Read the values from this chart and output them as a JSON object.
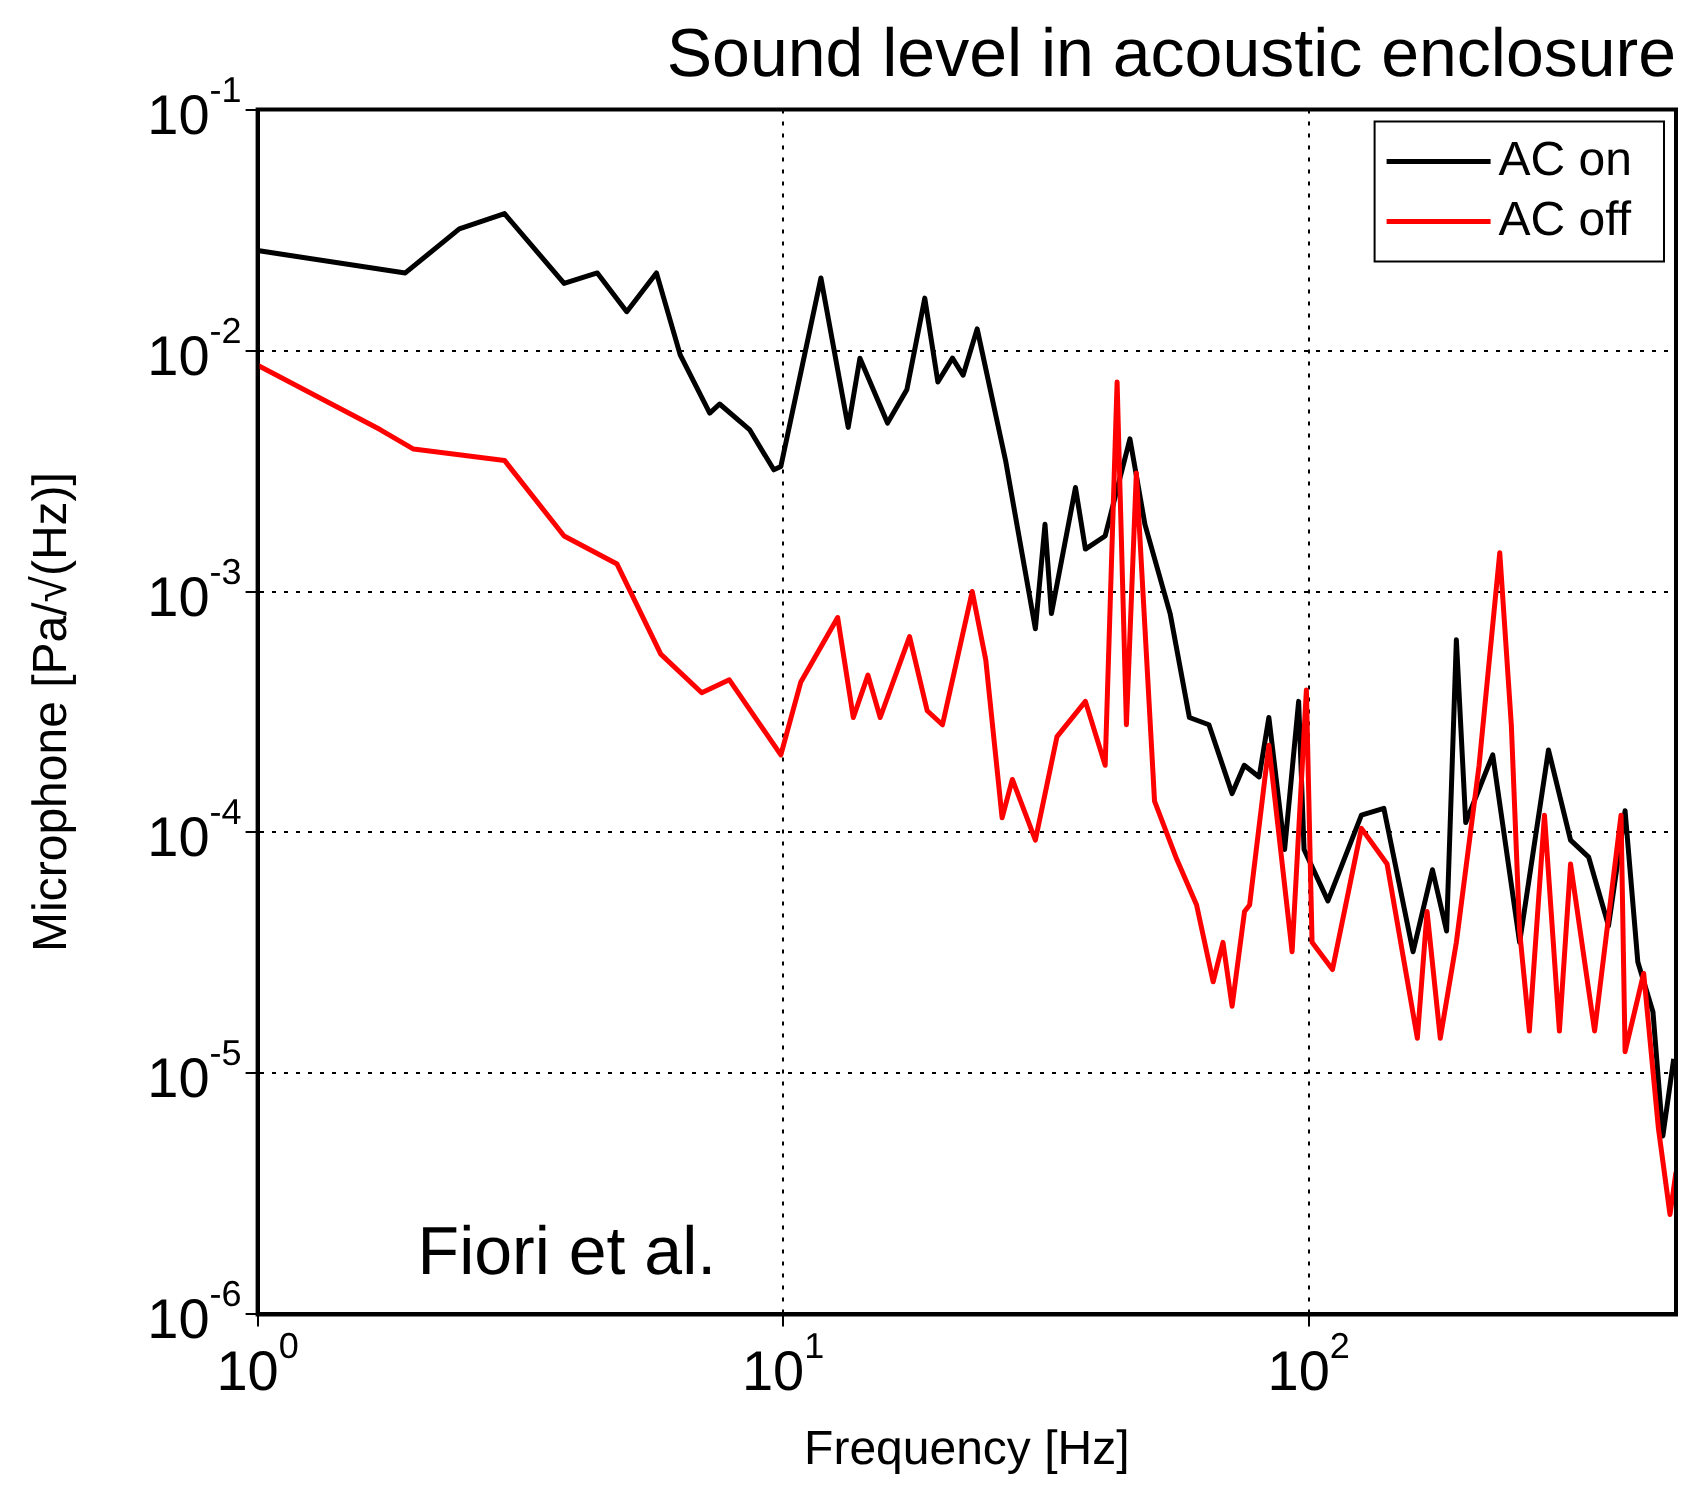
{
  "chart_data": {
    "type": "line",
    "title": "Sound level in acoustic enclosure",
    "xlabel": "Frequency [Hz]",
    "ylabel": "Microphone [Pa/√(Hz)]",
    "log": "xy",
    "grid": true,
    "legend": "top right",
    "xlim": [
      1,
      500
    ],
    "ylim": [
      1e-06,
      0.1
    ],
    "xticks": [
      {
        "value": 1,
        "label": "10$^{0}$"
      },
      {
        "value": 10,
        "label": "10$^{1}$"
      },
      {
        "value": 100,
        "label": "10$^{2}$"
      }
    ],
    "yticks": [
      {
        "value": 1e-06,
        "label": "10$^{-6}$"
      },
      {
        "value": 1e-05,
        "label": "10$^{-5}$"
      },
      {
        "value": 0.0001,
        "label": "10$^{-4}$"
      },
      {
        "value": 0.001,
        "label": "10$^{-3}$"
      },
      {
        "value": 0.01,
        "label": "10$^{-2}$"
      },
      {
        "value": 0.1,
        "label": "10$^{-1}$"
      }
    ],
    "annotations": [
      "Fiori et al."
    ],
    "series": [
      {
        "name": "AC on",
        "color": "#000000",
        "x": [
          1,
          1.91,
          2.42,
          2.95,
          3.83,
          4.43,
          5.04,
          5.74,
          6.37,
          7.25,
          7.57,
          8.63,
          9.6,
          9.9,
          11.8,
          13.3,
          14,
          15.8,
          17.2,
          18.6,
          19.7,
          21,
          22,
          23.4,
          26.5,
          30.2,
          31.5,
          32.4,
          36,
          37.6,
          41,
          45.7,
          48.8,
          54.5,
          59.3,
          64.6,
          71.5,
          75.4,
          80.5,
          84,
          90,
          95.7,
          98,
          108.8,
          126,
          139,
          158,
          172,
          183,
          191,
          199,
          224,
          252,
          286,
          315,
          341,
          372,
          400,
          423,
          452,
          472,
          495
        ],
        "values": [
          0.026,
          0.021,
          0.032,
          0.037,
          0.019,
          0.021,
          0.0145,
          0.021,
          0.0096,
          0.0055,
          0.006,
          0.0047,
          0.0032,
          0.0033,
          0.02,
          0.0048,
          0.0093,
          0.005,
          0.0069,
          0.0165,
          0.0074,
          0.0093,
          0.0079,
          0.0123,
          0.0035,
          0.0007,
          0.0019,
          0.00081,
          0.0027,
          0.0015,
          0.0017,
          0.0043,
          0.0019,
          0.00081,
          0.0003,
          0.00028,
          0.000145,
          0.00019,
          0.00017,
          0.0003,
          8.5e-05,
          0.00035,
          8.5e-05,
          5.2e-05,
          0.000118,
          0.000126,
          3.2e-05,
          7e-05,
          3.9e-05,
          0.00063,
          0.00011,
          0.00021,
          3.5e-05,
          0.00022,
          9.3e-05,
          7.9e-05,
          4.1e-05,
          0.000123,
          2.9e-05,
          1.8e-05,
          5.5e-06,
          1.15e-05
        ]
      },
      {
        "name": "AC off",
        "color": "#ff0000",
        "x": [
          1,
          1.71,
          1.98,
          2.95,
          3.83,
          4.83,
          5.85,
          7,
          7.9,
          9.9,
          10.8,
          12.7,
          13.6,
          14.5,
          15.3,
          17.4,
          18.8,
          20.1,
          22.9,
          24.3,
          26.1,
          27.3,
          30.2,
          33.2,
          37.6,
          41,
          43.2,
          45,
          47,
          50.9,
          55.9,
          61.2,
          65.8,
          68.7,
          71.5,
          75.5,
          77.2,
          84,
          93,
          99,
          101.5,
          111,
          126,
          141,
          161,
          168,
          178,
          191,
          211,
          231,
          243,
          252,
          263,
          281,
          300,
          315,
          350,
          393,
          400,
          434,
          463,
          487,
          500
        ],
        "values": [
          0.0087,
          0.0047,
          0.0039,
          0.0035,
          0.0017,
          0.0013,
          0.00055,
          0.00038,
          0.00043,
          0.00021,
          0.00042,
          0.00078,
          0.0003,
          0.00045,
          0.0003,
          0.00065,
          0.00032,
          0.00028,
          0.001,
          0.00052,
          0.000115,
          0.000166,
          9.3e-05,
          0.00025,
          0.00035,
          0.00019,
          0.0074,
          0.00028,
          0.0031,
          0.000135,
          7.9e-05,
          5e-05,
          2.4e-05,
          3.5e-05,
          1.9e-05,
          4.7e-05,
          5e-05,
          0.00023,
          3.2e-05,
          0.00039,
          3.5e-05,
          2.7e-05,
          0.000104,
          7.4e-05,
          1.4e-05,
          4.7e-05,
          1.4e-05,
          3.5e-05,
          0.00019,
          0.00145,
          0.00028,
          3.9e-05,
          1.5e-05,
          0.000118,
          1.5e-05,
          7.4e-05,
          1.5e-05,
          0.000118,
          1.23e-05,
          2.6e-05,
          5.9e-06,
          2.6e-06,
          3.9e-06
        ]
      }
    ]
  }
}
